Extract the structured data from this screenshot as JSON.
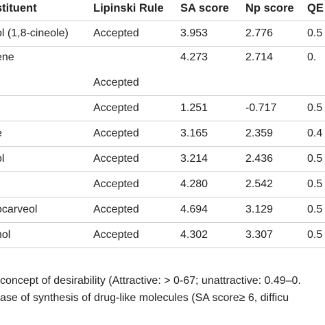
{
  "table": {
    "headers": [
      "stituent",
      "Lipinski Rule",
      "SA score",
      "Np score",
      "QE"
    ],
    "rows": [
      {
        "name": "ol (1,8-cineole)",
        "lipinski": "Accepted",
        "sa": "3.953",
        "np": "2.776",
        "qed": "0.5"
      },
      {
        "name": "ene",
        "lipinski": "Accepted",
        "sa": "4.273",
        "np": "2.714",
        "qed": "0."
      },
      {
        "name": "-",
        "lipinski": "Accepted",
        "sa": "1.251",
        "np": "-0.717",
        "qed": "0.5"
      },
      {
        "name": "e",
        "lipinski": "Accepted",
        "sa": "3.165",
        "np": "2.359",
        "qed": "0.4"
      },
      {
        "name": "ol",
        "lipinski": "Accepted",
        "sa": "3.214",
        "np": "2.436",
        "qed": "0.5"
      },
      {
        "name": "",
        "lipinski": "Accepted",
        "sa": "4.280",
        "np": "2.542",
        "qed": "0.5"
      },
      {
        "name": "ocarveol",
        "lipinski": "Accepted",
        "sa": "4.694",
        "np": "3.129",
        "qed": "0.5"
      },
      {
        "name": "nol",
        "lipinski": "Accepted",
        "sa": "4.302",
        "np": "3.307",
        "qed": "0.5"
      }
    ]
  },
  "footnotes": {
    "line1": "concept of desirability (Attractive: > 0-67; unattractive: 0.49–0.",
    "line2": "ase of synthesis of drug-like molecules (SA score≥ 6, difficu"
  }
}
